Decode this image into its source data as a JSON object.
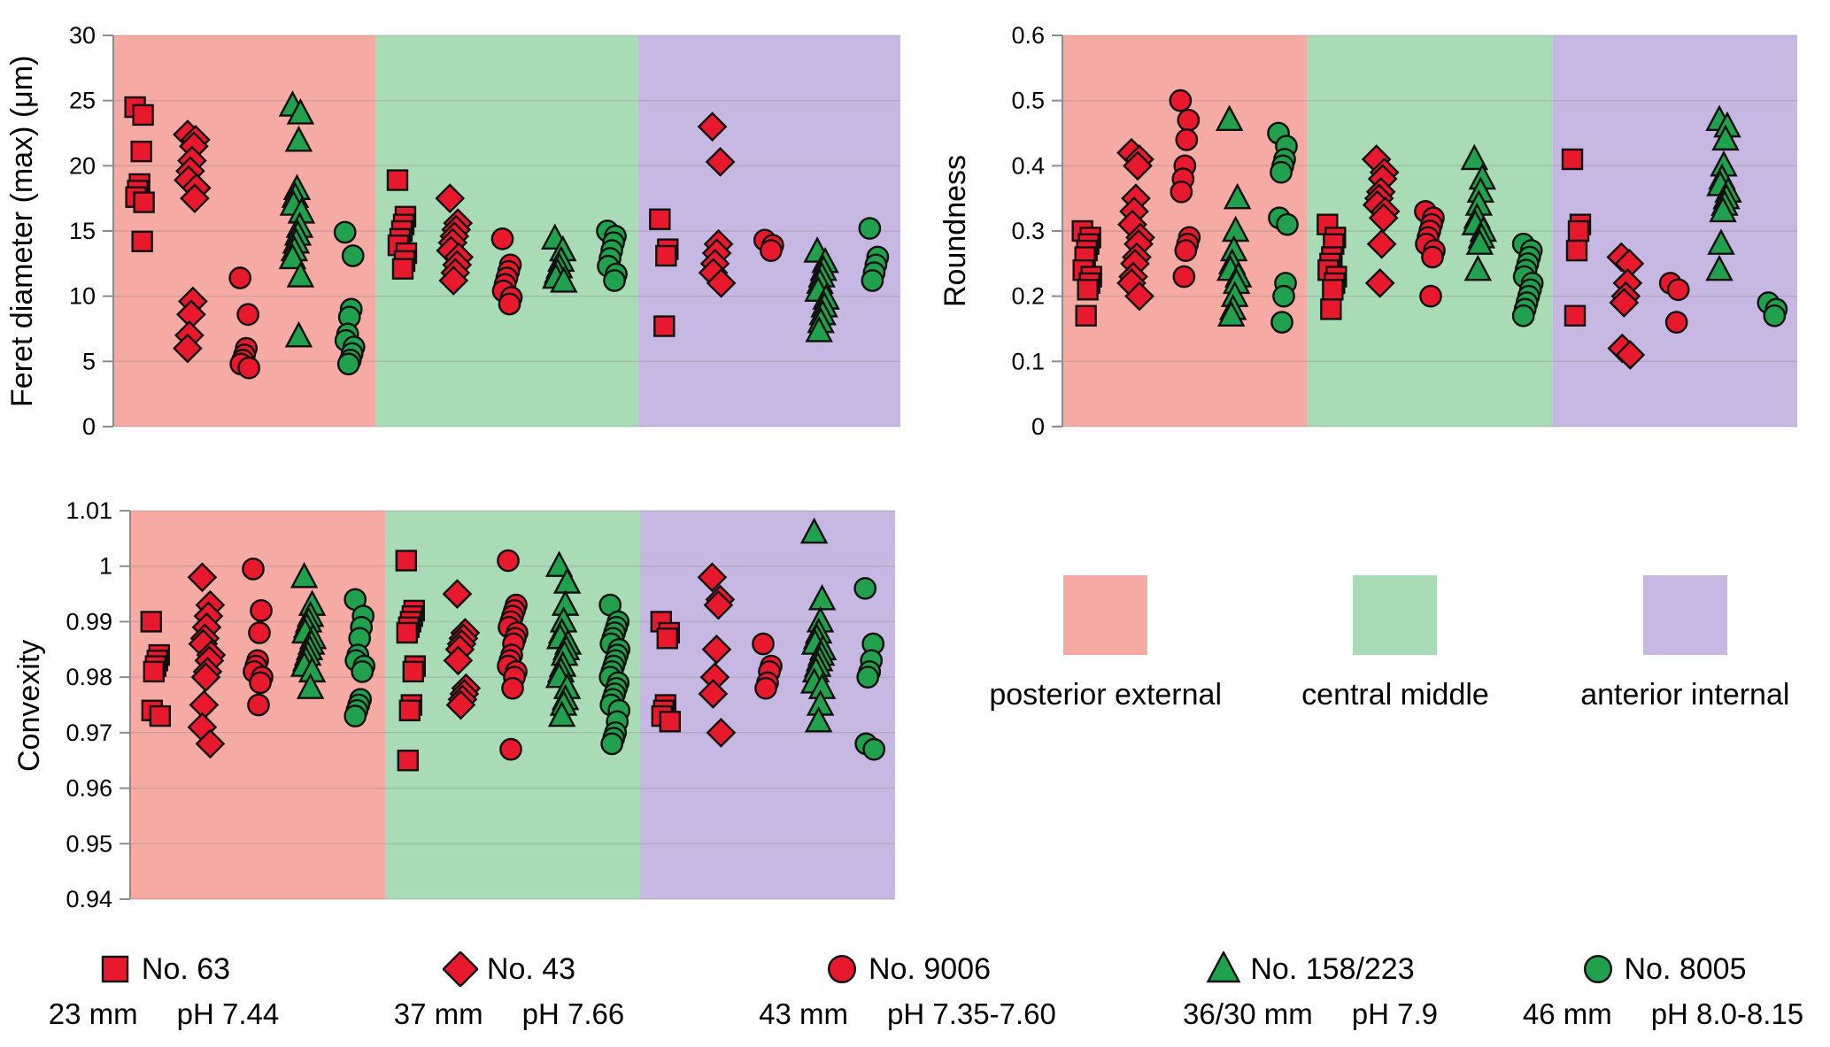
{
  "figure": {
    "background": "#ffffff"
  },
  "region_legend": {
    "items": [
      {
        "label": "posterior external",
        "color": "#f6aaa4"
      },
      {
        "label": "central middle",
        "color": "#a9dbb6"
      },
      {
        "label": "anterior internal",
        "color": "#c6b8e2"
      }
    ]
  },
  "series_legend": [
    {
      "label": "No. 63",
      "size": "23 mm",
      "ph": "pH 7.44",
      "shape": "square",
      "color": "#e8192c"
    },
    {
      "label": "No. 43",
      "size": "37 mm",
      "ph": "pH 7.66",
      "shape": "diamond",
      "color": "#e8192c"
    },
    {
      "label": "No. 9006",
      "size": "43 mm",
      "ph": "pH 7.35-7.60",
      "shape": "circle",
      "color": "#e8192c"
    },
    {
      "label": "No. 158/223",
      "size": "36/30 mm",
      "ph": "pH 7.9",
      "shape": "triangle",
      "color": "#21a14d"
    },
    {
      "label": "No. 8005",
      "size": "46 mm",
      "ph": "pH 8.0-8.15",
      "shape": "circle",
      "color": "#21a14d"
    }
  ],
  "chart_data": [
    {
      "type": "scatter",
      "ylabel": "Feret diameter (max) (μm)",
      "xlabel": "",
      "ylim": [
        0,
        30
      ],
      "ytick_values": [
        0,
        5,
        10,
        15,
        20,
        25,
        30
      ],
      "ytick_labels": [
        "0",
        "5",
        "10",
        "15",
        "20",
        "25",
        "30"
      ],
      "grid": true,
      "regions": [
        "posterior external",
        "central middle",
        "anterior internal"
      ],
      "series": [
        "No. 63",
        "No. 43",
        "No. 9006",
        "No. 158/223",
        "No. 8005"
      ],
      "values": [
        [
          [
            24.5,
            23.9,
            21.1,
            18.6,
            18.1,
            17.6,
            17.2,
            14.2
          ],
          [
            22.4,
            22.0,
            21.5,
            20.4,
            19.6,
            18.9,
            18.3,
            17.5,
            9.6,
            8.6,
            7.0,
            6.0
          ],
          [
            11.4,
            8.6,
            6.0,
            5.5,
            5.1,
            4.8,
            4.5
          ],
          [
            24.6,
            24.0,
            21.9,
            18.2,
            17.6,
            17.0,
            16.4,
            15.3,
            14.7,
            14.1,
            13.5,
            12.9,
            11.5,
            6.9
          ],
          [
            14.9,
            13.1,
            9.0,
            8.4,
            7.1,
            6.6,
            6.1,
            5.6,
            5.1,
            4.8
          ]
        ],
        [
          [
            18.9,
            16.1,
            15.5,
            15.0,
            14.4,
            13.9,
            13.3,
            12.7,
            12.1
          ],
          [
            17.5,
            15.6,
            15.1,
            14.6,
            14.1,
            13.5,
            13.0,
            12.4,
            11.8,
            11.2
          ],
          [
            14.4,
            12.4,
            11.9,
            11.4,
            10.9,
            10.4,
            9.9,
            9.4
          ],
          [
            14.4,
            13.5,
            12.7,
            12.2,
            11.8,
            11.4,
            11.1
          ],
          [
            15.0,
            14.6,
            14.1,
            13.5,
            12.9,
            12.3,
            11.7,
            11.2
          ]
        ],
        [
          [
            15.9,
            13.6,
            13.1,
            7.7
          ],
          [
            23.0,
            20.3,
            14.0,
            13.3,
            12.5,
            11.8,
            11.0
          ],
          [
            14.3,
            13.9,
            13.5
          ],
          [
            13.4,
            12.6,
            12.0,
            11.5,
            11.0,
            10.4,
            9.8,
            9.2,
            8.6,
            8.0,
            7.3
          ],
          [
            15.2,
            13.0,
            12.4,
            11.8,
            11.2
          ]
        ]
      ]
    },
    {
      "type": "scatter",
      "ylabel": "Roundness",
      "xlabel": "",
      "ylim": [
        0,
        0.6
      ],
      "ytick_values": [
        0,
        0.1,
        0.2,
        0.3,
        0.4,
        0.5,
        0.6
      ],
      "ytick_labels": [
        "0",
        "0.1",
        "0.2",
        "0.3",
        "0.4",
        "0.5",
        "0.6"
      ],
      "grid": true,
      "regions": [
        "posterior external",
        "central middle",
        "anterior internal"
      ],
      "series": [
        "No. 63",
        "No. 43",
        "No. 9006",
        "No. 158/223",
        "No. 8005"
      ],
      "values": [
        [
          [
            0.3,
            0.29,
            0.28,
            0.27,
            0.26,
            0.24,
            0.23,
            0.22,
            0.21,
            0.17
          ],
          [
            0.42,
            0.41,
            0.4,
            0.35,
            0.33,
            0.31,
            0.29,
            0.28,
            0.26,
            0.25,
            0.23,
            0.22,
            0.2
          ],
          [
            0.5,
            0.47,
            0.44,
            0.4,
            0.38,
            0.36,
            0.29,
            0.28,
            0.27,
            0.23
          ],
          [
            0.47,
            0.35,
            0.3,
            0.27,
            0.25,
            0.24,
            0.23,
            0.22,
            0.2,
            0.18,
            0.17
          ],
          [
            0.45,
            0.43,
            0.41,
            0.4,
            0.39,
            0.32,
            0.31,
            0.22,
            0.2,
            0.16
          ]
        ],
        [
          [
            0.31,
            0.29,
            0.28,
            0.26,
            0.25,
            0.24,
            0.23,
            0.22,
            0.21,
            0.18
          ],
          [
            0.41,
            0.39,
            0.38,
            0.36,
            0.35,
            0.34,
            0.33,
            0.32,
            0.28,
            0.22
          ],
          [
            0.33,
            0.32,
            0.31,
            0.3,
            0.29,
            0.28,
            0.27,
            0.26,
            0.2
          ],
          [
            0.41,
            0.38,
            0.36,
            0.34,
            0.32,
            0.31,
            0.3,
            0.29,
            0.28,
            0.24
          ],
          [
            0.28,
            0.27,
            0.26,
            0.25,
            0.24,
            0.23,
            0.22,
            0.21,
            0.2,
            0.19,
            0.18,
            0.17
          ]
        ],
        [
          [
            0.41,
            0.31,
            0.3,
            0.27,
            0.17
          ],
          [
            0.26,
            0.25,
            0.22,
            0.2,
            0.19,
            0.12,
            0.11
          ],
          [
            0.22,
            0.21,
            0.16
          ],
          [
            0.47,
            0.46,
            0.44,
            0.4,
            0.38,
            0.37,
            0.36,
            0.35,
            0.34,
            0.33,
            0.28,
            0.24
          ],
          [
            0.19,
            0.18,
            0.17
          ]
        ]
      ]
    },
    {
      "type": "scatter",
      "ylabel": "Convexity",
      "xlabel": "",
      "ylim": [
        0.94,
        1.01
      ],
      "ytick_values": [
        0.94,
        0.95,
        0.96,
        0.97,
        0.98,
        0.99,
        1.0,
        1.01
      ],
      "ytick_labels": [
        "0.94",
        "0.95",
        "0.96",
        "0.97",
        "0.98",
        "0.99",
        "1",
        "1.01"
      ],
      "grid": true,
      "regions": [
        "posterior external",
        "central middle",
        "anterior internal"
      ],
      "series": [
        "No. 63",
        "No. 43",
        "No. 9006",
        "No. 158/223",
        "No. 8005"
      ],
      "values": [
        [
          [
            0.99,
            0.984,
            0.983,
            0.982,
            0.981,
            0.974,
            0.973
          ],
          [
            0.998,
            0.993,
            0.991,
            0.989,
            0.987,
            0.986,
            0.984,
            0.983,
            0.981,
            0.98,
            0.975,
            0.971,
            0.968
          ],
          [
            0.9995,
            0.992,
            0.988,
            0.983,
            0.982,
            0.981,
            0.98,
            0.979,
            0.975
          ],
          [
            0.998,
            0.993,
            0.991,
            0.99,
            0.989,
            0.988,
            0.987,
            0.986,
            0.985,
            0.984,
            0.983,
            0.982,
            0.981,
            0.978
          ],
          [
            0.994,
            0.991,
            0.989,
            0.987,
            0.984,
            0.983,
            0.982,
            0.981,
            0.976,
            0.975,
            0.974,
            0.973
          ]
        ],
        [
          [
            1.001,
            0.992,
            0.991,
            0.99,
            0.989,
            0.988,
            0.982,
            0.981,
            0.975,
            0.974,
            0.965
          ],
          [
            0.995,
            0.988,
            0.987,
            0.986,
            0.985,
            0.983,
            0.978,
            0.977,
            0.976,
            0.975
          ],
          [
            1.001,
            0.993,
            0.992,
            0.991,
            0.99,
            0.989,
            0.988,
            0.987,
            0.986,
            0.984,
            0.983,
            0.982,
            0.981,
            0.98,
            0.978,
            0.967
          ],
          [
            1.0,
            0.997,
            0.993,
            0.99,
            0.988,
            0.987,
            0.986,
            0.985,
            0.984,
            0.982,
            0.981,
            0.98,
            0.978,
            0.976,
            0.975,
            0.973
          ],
          [
            0.993,
            0.99,
            0.989,
            0.988,
            0.987,
            0.986,
            0.985,
            0.984,
            0.983,
            0.982,
            0.981,
            0.98,
            0.979,
            0.978,
            0.977,
            0.976,
            0.975,
            0.974,
            0.972,
            0.97,
            0.969,
            0.968
          ]
        ],
        [
          [
            0.99,
            0.988,
            0.987,
            0.975,
            0.974,
            0.973,
            0.972
          ],
          [
            0.998,
            0.994,
            0.993,
            0.985,
            0.98,
            0.977,
            0.97
          ],
          [
            0.986,
            0.982,
            0.981,
            0.979,
            0.978
          ],
          [
            1.006,
            0.994,
            0.99,
            0.988,
            0.987,
            0.986,
            0.985,
            0.984,
            0.983,
            0.982,
            0.981,
            0.979,
            0.978,
            0.975,
            0.972
          ],
          [
            0.996,
            0.986,
            0.983,
            0.981,
            0.98,
            0.968,
            0.967
          ]
        ]
      ]
    }
  ]
}
